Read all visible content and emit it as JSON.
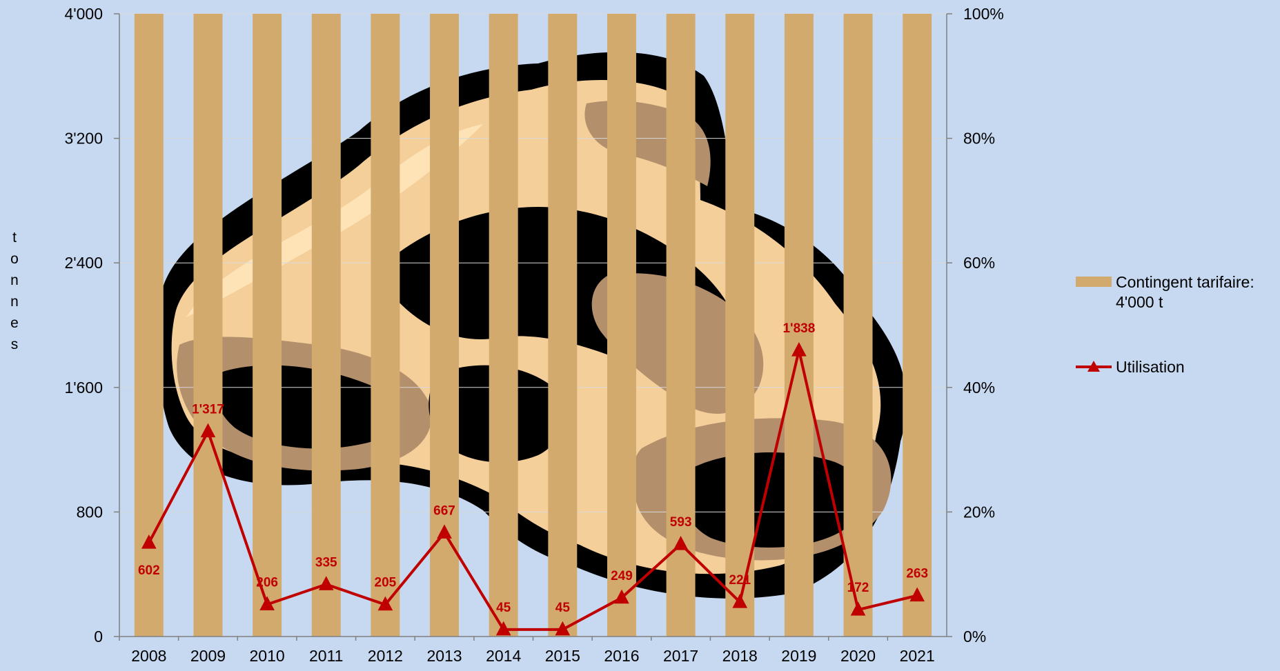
{
  "chart_data": {
    "type": "bar+line",
    "ylabel": "tonnes",
    "categories": [
      "2008",
      "2009",
      "2010",
      "2011",
      "2012",
      "2013",
      "2014",
      "2015",
      "2016",
      "2017",
      "2018",
      "2019",
      "2020",
      "2021"
    ],
    "y_left": {
      "min": 0,
      "max": 4000,
      "ticks": [
        "0",
        "800",
        "1'600",
        "2'400",
        "3'200",
        "4'000"
      ]
    },
    "y_right": {
      "min": 0,
      "max": 100,
      "ticks": [
        "0%",
        "20%",
        "40%",
        "60%",
        "80%",
        "100%"
      ]
    },
    "series": [
      {
        "name": "Contingent tarifaire: 4'000 t",
        "name_lines": [
          "Contingent tarifaire:",
          "4'000 t"
        ],
        "type": "bar",
        "axis": "left",
        "color": "#d2aa6d",
        "values": [
          4000,
          4000,
          4000,
          4000,
          4000,
          4000,
          4000,
          4000,
          4000,
          4000,
          4000,
          4000,
          4000,
          4000
        ]
      },
      {
        "name": "Utilisation",
        "type": "line",
        "axis": "left",
        "marker": "triangle",
        "color": "#c00000",
        "values": [
          602,
          1317,
          206,
          335,
          205,
          667,
          45,
          45,
          249,
          593,
          221,
          1838,
          172,
          263
        ],
        "labels": [
          "602",
          "1'317",
          "206",
          "335",
          "205",
          "667",
          "45",
          "45",
          "249",
          "593",
          "221",
          "1'838",
          "172",
          "263"
        ]
      }
    ],
    "grid": "horizontal",
    "legend_position": "right",
    "background_color": "#c6d9f1",
    "background_image": "steak-clipart"
  }
}
